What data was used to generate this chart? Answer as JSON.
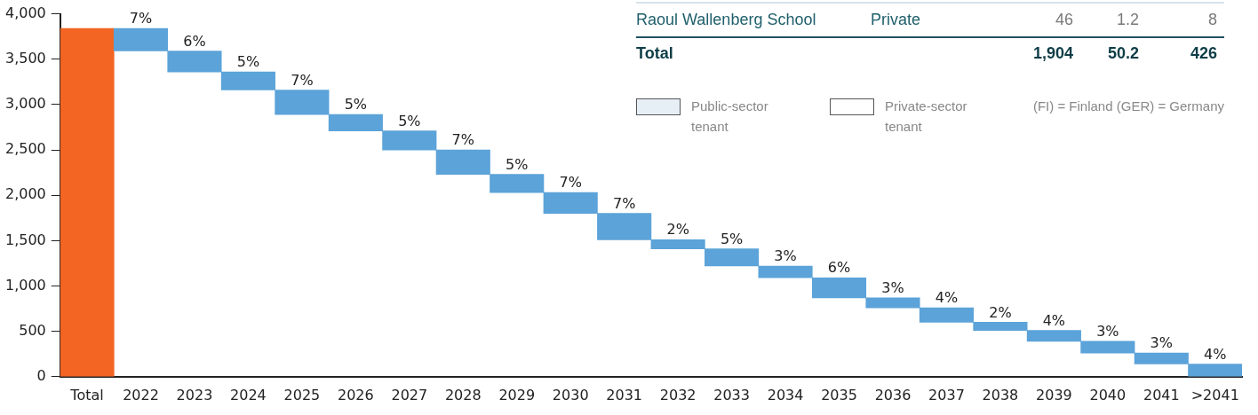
{
  "chart_data": {
    "type": "bar",
    "categories": [
      "Total",
      "2022",
      "2023",
      "2024",
      "2025",
      "2026",
      "2027",
      "2028",
      "2029",
      "2030",
      "2031",
      "2032",
      "2033",
      "2034",
      "2035",
      "2036",
      "2037",
      "2038",
      "2039",
      "2040",
      "2041",
      ">2041"
    ],
    "values": [
      3840,
      250,
      230,
      200,
      270,
      180,
      210,
      270,
      200,
      230,
      290,
      100,
      190,
      130,
      220,
      110,
      160,
      90,
      120,
      130,
      120,
      140
    ],
    "base": [
      0,
      3590,
      3360,
      3160,
      2890,
      2710,
      2500,
      2230,
      2030,
      1800,
      1510,
      1410,
      1220,
      1090,
      870,
      760,
      600,
      510,
      390,
      260,
      140,
      0
    ],
    "colors": [
      "#f26522",
      "#5ba3d9",
      "#5ba3d9",
      "#5ba3d9",
      "#5ba3d9",
      "#5ba3d9",
      "#5ba3d9",
      "#5ba3d9",
      "#5ba3d9",
      "#5ba3d9",
      "#5ba3d9",
      "#5ba3d9",
      "#5ba3d9",
      "#5ba3d9",
      "#5ba3d9",
      "#5ba3d9",
      "#5ba3d9",
      "#5ba3d9",
      "#5ba3d9",
      "#5ba3d9",
      "#5ba3d9",
      "#5ba3d9"
    ],
    "ylim": [
      0,
      4000
    ],
    "yticks": [
      0,
      {
        "value": 500,
        "label": "500"
      },
      {
        "value": 1000,
        "label": "1,000"
      },
      {
        "value": 1500,
        "label": "1,500"
      },
      {
        "value": 2000,
        "label": "2,000"
      },
      {
        "value": 2500,
        "label": "2,500"
      },
      {
        "value": 3000,
        "label": "3,000"
      },
      {
        "value": 3500,
        "label": "3,500"
      },
      {
        "value": 4000,
        "label": "4,000"
      }
    ],
    "grid": false,
    "legend": false,
    "annotations": [
      "Raoul Wallenberg School",
      "Private",
      "46",
      "1.2",
      "8",
      "Total",
      "1,904",
      "50.2",
      "426",
      "Public-sector tenant",
      "Private-sector tenant",
      "(FI) = Finland (GER) = Germany",
      {
        "text": "7%",
        "x": "2022",
        "y": 3840
      },
      {
        "text": "6%",
        "x": "2023",
        "y": 3590
      },
      {
        "text": "5%",
        "x": "2024",
        "y": 3360
      },
      {
        "text": "7%",
        "x": "2025",
        "y": 3160
      },
      {
        "text": "5%",
        "x": "2026",
        "y": 2890
      },
      {
        "text": "5%",
        "x": "2027",
        "y": 2710
      },
      {
        "text": "7%",
        "x": "2028",
        "y": 2500
      },
      {
        "text": "5%",
        "x": "2029",
        "y": 2230
      },
      {
        "text": "7%",
        "x": "2030",
        "y": 2030
      },
      {
        "text": "7%",
        "x": "2031",
        "y": 1800
      },
      {
        "text": "2%",
        "x": "2032",
        "y": 1510
      },
      {
        "text": "5%",
        "x": "2033",
        "y": 1410
      },
      {
        "text": "3%",
        "x": "2034",
        "y": 1220
      },
      {
        "text": "6%",
        "x": "2035",
        "y": 1090
      },
      {
        "text": "3%",
        "x": "2036",
        "y": 870
      },
      {
        "text": "4%",
        "x": "2037",
        "y": 760
      },
      {
        "text": "2%",
        "x": "2038",
        "y": 600
      },
      {
        "text": "4%",
        "x": "2039",
        "y": 510
      },
      {
        "text": "3%",
        "x": "2040",
        "y": 390
      },
      {
        "text": "3%",
        "x": "2041",
        "y": 260
      },
      {
        "text": "4%",
        "x": ">2041",
        "y": 140
      }
    ]
  }
}
